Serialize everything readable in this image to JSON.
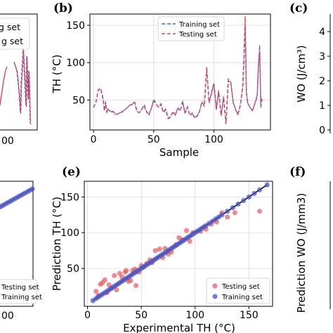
{
  "chart_data": [
    {
      "panel": "(a)",
      "type": "line",
      "partial": true,
      "legend_fragments": [
        "g set",
        "g set"
      ],
      "x_tick_fragment": "00",
      "colors": {
        "training": "#4f5bd5",
        "testing": "#e0484b"
      }
    },
    {
      "panel": "(b)",
      "type": "line",
      "xlabel": "Sample",
      "ylabel": "TH (°C)",
      "xlim": [
        -3,
        147
      ],
      "ylim": [
        10,
        165
      ],
      "xticks": [
        "0",
        "50",
        "100"
      ],
      "yticks": [
        "50",
        "100",
        "150"
      ],
      "grid": true,
      "legend_position": "top-center",
      "series": [
        {
          "name": "Training set",
          "color": "#4f5bd5",
          "style": "dashed",
          "x": [
            0,
            2,
            4,
            6,
            8,
            9,
            10,
            11,
            12,
            14,
            16,
            18,
            20,
            22,
            24,
            26,
            28,
            30,
            32,
            34,
            36,
            38,
            40,
            42,
            44,
            46,
            48,
            50,
            52,
            54,
            56,
            58,
            60,
            62,
            64,
            66,
            68,
            70,
            72,
            74,
            76,
            78,
            80,
            82,
            84,
            86,
            88,
            90,
            92,
            94,
            96,
            98,
            100,
            102,
            104,
            106,
            108,
            110,
            112,
            114,
            116,
            118,
            120,
            122,
            124,
            125,
            126,
            127,
            128,
            130,
            132,
            134,
            136,
            137,
            138,
            139,
            140
          ],
          "values": [
            40,
            48,
            63,
            66,
            52,
            36,
            48,
            33,
            38,
            35,
            35,
            32,
            31,
            33,
            35,
            37,
            40,
            42,
            44,
            48,
            36,
            33,
            37,
            44,
            35,
            30,
            38,
            51,
            45,
            40,
            44,
            33,
            37,
            25,
            27,
            35,
            30,
            40,
            35,
            49,
            32,
            41,
            29,
            33,
            26,
            28,
            35,
            47,
            42,
            91,
            46,
            60,
            73,
            38,
            61,
            30,
            53,
            18,
            76,
            73,
            46,
            38,
            30,
            44,
            67,
            102,
            150,
            62,
            47,
            40,
            36,
            45,
            55,
            96,
            123,
            40,
            55
          ]
        },
        {
          "name": "Testing set",
          "color": "#e0484b",
          "style": "dashed",
          "x": [
            0,
            2,
            4,
            6,
            8,
            9,
            10,
            11,
            12,
            14,
            16,
            18,
            20,
            22,
            24,
            26,
            28,
            30,
            32,
            34,
            36,
            38,
            40,
            42,
            44,
            46,
            48,
            50,
            52,
            54,
            56,
            58,
            60,
            62,
            64,
            66,
            68,
            70,
            72,
            74,
            76,
            78,
            80,
            82,
            84,
            86,
            88,
            90,
            92,
            94,
            96,
            98,
            100,
            102,
            104,
            106,
            108,
            110,
            112,
            114,
            116,
            118,
            120,
            122,
            124,
            125,
            126,
            127,
            128,
            130,
            132,
            134,
            136,
            137,
            138,
            139,
            140
          ],
          "values": [
            40,
            47,
            64,
            65,
            50,
            35,
            47,
            34,
            37,
            35,
            34,
            31,
            31,
            33,
            34,
            37,
            40,
            43,
            45,
            47,
            35,
            33,
            38,
            42,
            34,
            31,
            39,
            49,
            44,
            41,
            45,
            34,
            38,
            26,
            28,
            33,
            30,
            39,
            36,
            47,
            33,
            40,
            30,
            32,
            27,
            29,
            34,
            47,
            43,
            94,
            47,
            58,
            72,
            37,
            63,
            29,
            55,
            18,
            78,
            74,
            48,
            37,
            31,
            43,
            70,
            110,
            162,
            60,
            46,
            41,
            35,
            45,
            58,
            99,
            115,
            42,
            52
          ]
        }
      ]
    },
    {
      "panel": "(c)",
      "type": "line",
      "partial": true,
      "ylabel": "WO (J/cm³)",
      "yticks": [
        "0",
        "1",
        "2",
        "3",
        "4"
      ]
    },
    {
      "panel": "(d)",
      "type": "scatter",
      "partial": true,
      "legend": [
        "Testing set",
        "Training set"
      ],
      "x_tick_fragment": "00"
    },
    {
      "panel": "(e)",
      "type": "scatter",
      "xlabel": "Experimental TH (°C)",
      "ylabel": "Prediction TH (°C)",
      "xlim": [
        -3,
        172
      ],
      "ylim": [
        -3,
        172
      ],
      "xticks": [
        "0",
        "50",
        "100",
        "150"
      ],
      "yticks": [
        "50",
        "100",
        "150"
      ],
      "grid": true,
      "legend_position": "bottom-right",
      "fit_line": [
        [
          5,
          5
        ],
        [
          167,
          167
        ]
      ],
      "series": [
        {
          "name": "Testing set",
          "color": "#e8595c",
          "points": [
            [
              8,
              18
            ],
            [
              12,
              28
            ],
            [
              14,
              30
            ],
            [
              16,
              34
            ],
            [
              18,
              16
            ],
            [
              20,
              27
            ],
            [
              25,
              40
            ],
            [
              27,
              20
            ],
            [
              30,
              43
            ],
            [
              32,
              38
            ],
            [
              35,
              45
            ],
            [
              38,
              32
            ],
            [
              40,
              33
            ],
            [
              42,
              47
            ],
            [
              45,
              26
            ],
            [
              48,
              45
            ],
            [
              52,
              52
            ],
            [
              55,
              57
            ],
            [
              58,
              62
            ],
            [
              60,
              58
            ],
            [
              63,
              75
            ],
            [
              67,
              77
            ],
            [
              70,
              65
            ],
            [
              72,
              78
            ],
            [
              75,
              70
            ],
            [
              78,
              73
            ],
            [
              82,
              83
            ],
            [
              85,
              93
            ],
            [
              88,
              90
            ],
            [
              92,
              103
            ],
            [
              95,
              88
            ],
            [
              98,
              100
            ],
            [
              105,
              102
            ],
            [
              110,
              105
            ],
            [
              115,
              112
            ],
            [
              120,
              115
            ],
            [
              125,
              128
            ],
            [
              130,
              122
            ],
            [
              160,
              130
            ],
            [
              137,
              128
            ],
            [
              50,
              54
            ],
            [
              44,
              49
            ],
            [
              36,
              47
            ],
            [
              22,
              22
            ],
            [
              10,
              12
            ]
          ]
        },
        {
          "name": "Training set",
          "color": "#4a55c7",
          "points": [
            [
              5,
              5
            ],
            [
              8,
              8
            ],
            [
              10,
              10
            ],
            [
              12,
              12
            ],
            [
              14,
              14
            ],
            [
              16,
              16
            ],
            [
              18,
              18
            ],
            [
              20,
              20
            ],
            [
              22,
              22
            ],
            [
              24,
              24
            ],
            [
              26,
              26
            ],
            [
              28,
              28
            ],
            [
              30,
              30
            ],
            [
              32,
              32
            ],
            [
              34,
              34
            ],
            [
              36,
              36
            ],
            [
              38,
              38
            ],
            [
              40,
              40
            ],
            [
              42,
              42
            ],
            [
              44,
              44
            ],
            [
              46,
              46
            ],
            [
              48,
              48
            ],
            [
              50,
              50
            ],
            [
              52,
              52
            ],
            [
              54,
              54
            ],
            [
              56,
              56
            ],
            [
              58,
              58
            ],
            [
              60,
              60
            ],
            [
              62,
              62
            ],
            [
              64,
              64
            ],
            [
              66,
              66
            ],
            [
              68,
              68
            ],
            [
              70,
              70
            ],
            [
              72,
              72
            ],
            [
              74,
              74
            ],
            [
              76,
              76
            ],
            [
              78,
              78
            ],
            [
              80,
              80
            ],
            [
              82,
              82
            ],
            [
              84,
              84
            ],
            [
              86,
              86
            ],
            [
              88,
              88
            ],
            [
              90,
              90
            ],
            [
              92,
              92
            ],
            [
              94,
              94
            ],
            [
              96,
              96
            ],
            [
              98,
              98
            ],
            [
              100,
              100
            ],
            [
              102,
              102
            ],
            [
              104,
              104
            ],
            [
              106,
              106
            ],
            [
              108,
              108
            ],
            [
              110,
              110
            ],
            [
              113,
              113
            ],
            [
              116,
              116
            ],
            [
              119,
              119
            ],
            [
              122,
              122
            ],
            [
              125,
              125
            ],
            [
              130,
              130
            ],
            [
              135,
              135
            ],
            [
              140,
              140
            ],
            [
              145,
              145
            ],
            [
              150,
              150
            ],
            [
              155,
              155
            ],
            [
              160,
              160
            ],
            [
              167,
              167
            ]
          ]
        }
      ]
    },
    {
      "panel": "(f)",
      "type": "scatter",
      "partial": true,
      "ylabel": "Prediction WO (J/mm3)"
    }
  ]
}
